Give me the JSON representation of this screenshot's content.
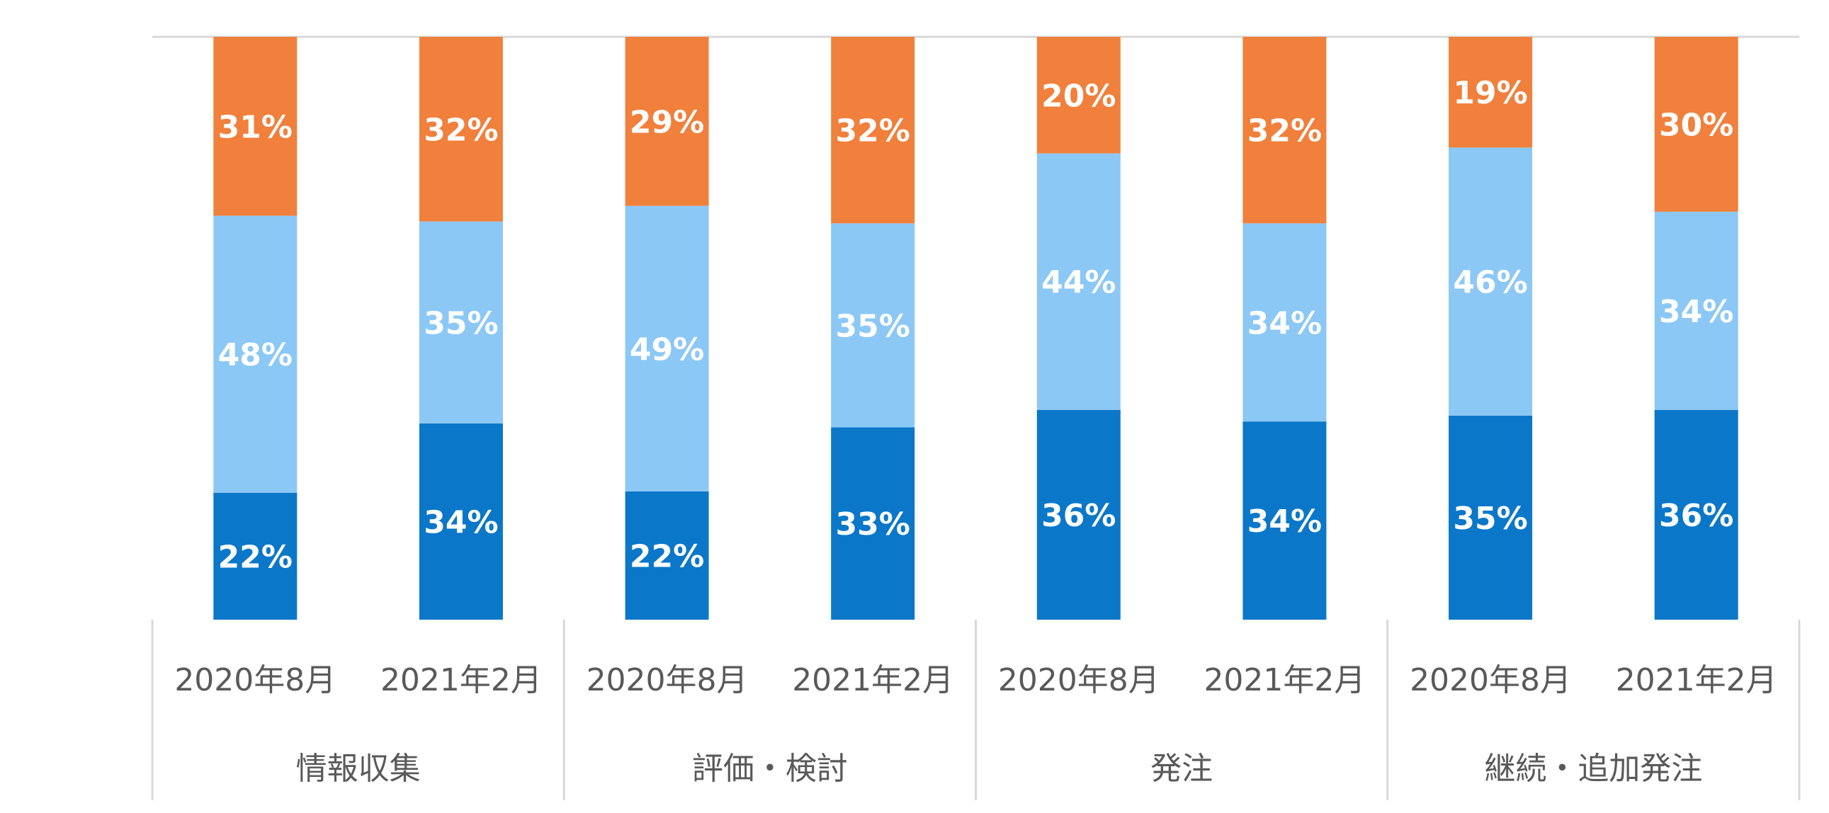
{
  "chart_data": {
    "type": "bar",
    "stacked": true,
    "percent_stacked": true,
    "groups": [
      "情報収集",
      "評価・検討",
      "発注",
      "継続・追加発注"
    ],
    "periods": [
      "2020年8月",
      "2021年2月"
    ],
    "categories": [
      "情報収集 2020年8月",
      "情報収集 2021年2月",
      "評価・検討 2020年8月",
      "評価・検討 2021年2月",
      "発注 2020年8月",
      "発注 2021年2月",
      "継続・追加発注 2020年8月",
      "継続・追加発注 2021年2月"
    ],
    "series": [
      {
        "color": "#0b77c9",
        "values": [
          22,
          34,
          22,
          33,
          36,
          34,
          35,
          36
        ]
      },
      {
        "color": "#8cc8f5",
        "values": [
          48,
          35,
          49,
          35,
          44,
          34,
          46,
          34
        ]
      },
      {
        "color": "#f0803c",
        "values": [
          31,
          32,
          29,
          32,
          20,
          32,
          19,
          30
        ]
      }
    ],
    "value_suffix": "%",
    "ylim": [
      0,
      100
    ],
    "grid": false,
    "legend": "none"
  }
}
